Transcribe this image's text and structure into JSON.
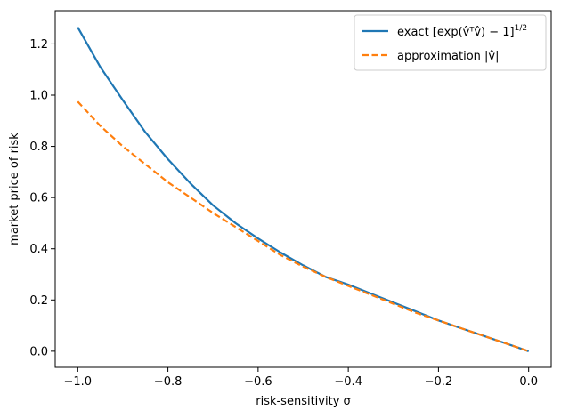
{
  "chart_data": {
    "type": "line",
    "xlabel": "risk-sensitivity σ",
    "ylabel": "market price of risk",
    "xlim": [
      -1.05,
      0.05
    ],
    "ylim": [
      -0.063,
      1.33
    ],
    "xticks": [
      -1.0,
      -0.8,
      -0.6,
      -0.4,
      -0.2,
      0.0
    ],
    "xtick_labels": [
      "−1.0",
      "−0.8",
      "−0.6",
      "−0.4",
      "−0.2",
      "0.0"
    ],
    "yticks": [
      0.0,
      0.2,
      0.4,
      0.6,
      0.8,
      1.0,
      1.2
    ],
    "ytick_labels": [
      "0.0",
      "0.2",
      "0.4",
      "0.6",
      "0.8",
      "1.0",
      "1.2"
    ],
    "grid": false,
    "legend_position": "top-right",
    "series": [
      {
        "name": "exact [exp(v̂ᵀv̂) − 1]",
        "name_superscript": "1/2",
        "color": "#1f77b4",
        "dash": "solid",
        "x": [
          -1.0,
          -0.95,
          -0.9,
          -0.85,
          -0.8,
          -0.75,
          -0.7,
          -0.65,
          -0.6,
          -0.55,
          -0.5,
          -0.45,
          -0.4,
          -0.35,
          -0.3,
          -0.25,
          -0.2,
          -0.15,
          -0.1,
          -0.05,
          0.0
        ],
        "y": [
          1.265,
          1.11,
          0.98,
          0.855,
          0.75,
          0.655,
          0.57,
          0.5,
          0.44,
          0.385,
          0.335,
          0.29,
          0.26,
          0.225,
          0.19,
          0.155,
          0.12,
          0.09,
          0.06,
          0.03,
          0.0
        ]
      },
      {
        "name": "approximation |v̂|",
        "color": "#ff7f0e",
        "dash": "dashed",
        "x": [
          -1.0,
          -0.95,
          -0.9,
          -0.85,
          -0.8,
          -0.75,
          -0.7,
          -0.65,
          -0.6,
          -0.55,
          -0.5,
          -0.45,
          -0.4,
          -0.35,
          -0.3,
          -0.25,
          -0.2,
          -0.15,
          -0.1,
          -0.05,
          0.0
        ],
        "y": [
          0.975,
          0.88,
          0.8,
          0.73,
          0.66,
          0.6,
          0.54,
          0.485,
          0.43,
          0.375,
          0.33,
          0.29,
          0.255,
          0.22,
          0.185,
          0.15,
          0.12,
          0.09,
          0.06,
          0.03,
          0.0
        ]
      }
    ]
  }
}
